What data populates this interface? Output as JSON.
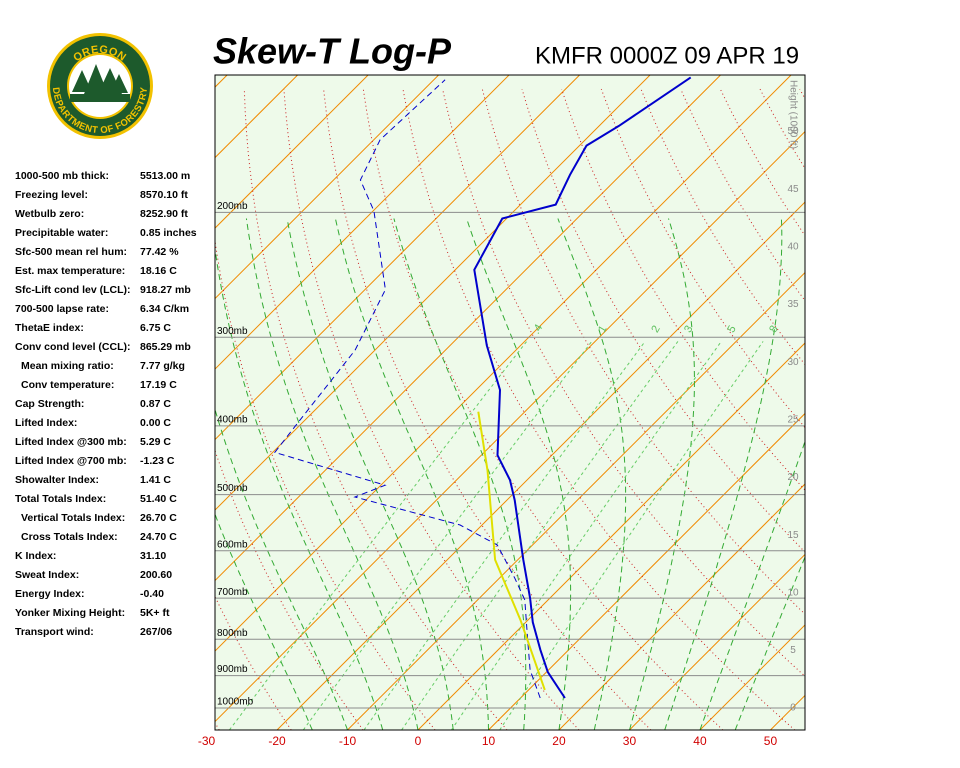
{
  "logo": {
    "top": "OREGON",
    "bottom": "DEPARTMENT OF FORESTRY"
  },
  "stats": [
    {
      "label": "1000-500 mb thick:",
      "value": "5513.00 m"
    },
    {
      "label": "Freezing level:",
      "value": "8570.10 ft"
    },
    {
      "label": "Wetbulb zero:",
      "value": "8252.90 ft"
    },
    {
      "label": "Precipitable water:",
      "value": "0.85 inches"
    },
    {
      "label": "Sfc-500 mean rel hum:",
      "value": "77.42 %"
    },
    {
      "label": "Est. max temperature:",
      "value": "18.16 C"
    },
    {
      "label": "Sfc-Lift cond lev (LCL):",
      "value": "918.27 mb"
    },
    {
      "label": "700-500 lapse rate:",
      "value": "6.34 C/km"
    },
    {
      "label": "ThetaE index:",
      "value": "6.75 C"
    },
    {
      "label": "Conv cond level (CCL):",
      "value": "865.29 mb"
    },
    {
      "label": "Mean mixing ratio:",
      "value": "7.77 g/kg",
      "indent": true
    },
    {
      "label": "Conv temperature:",
      "value": "17.19 C",
      "indent": true
    },
    {
      "label": "Cap Strength:",
      "value": "0.87 C"
    },
    {
      "label": "Lifted Index:",
      "value": "0.00 C"
    },
    {
      "label": "Lifted Index @300 mb:",
      "value": "5.29 C"
    },
    {
      "label": "Lifted Index @700 mb:",
      "value": "-1.23 C"
    },
    {
      "label": "Showalter Index:",
      "value": "1.41 C"
    },
    {
      "label": "Total Totals Index:",
      "value": "51.40 C"
    },
    {
      "label": "Vertical Totals Index:",
      "value": "26.70 C",
      "indent": true
    },
    {
      "label": "Cross Totals Index:",
      "value": "24.70 C",
      "indent": true
    },
    {
      "label": "K Index:",
      "value": "31.10"
    },
    {
      "label": "Sweat Index:",
      "value": "200.60"
    },
    {
      "label": "Energy Index:",
      "value": "-0.40"
    },
    {
      "label": "Yonker Mixing Height:",
      "value": "5K+ ft"
    },
    {
      "label": "Transport wind:",
      "value": "267/06"
    }
  ],
  "chart_data": {
    "type": "skew-t",
    "title": "Skew-T Log-P",
    "subtitle": "KMFR 0000Z 09 APR 19",
    "xlim": [
      -28.8,
      54.9
    ],
    "xticks": [
      -30,
      -20,
      -10,
      0,
      10,
      20,
      30,
      40,
      50
    ],
    "ylim": [
      1074,
      128
    ],
    "ylog": true,
    "yticks": [
      {
        "value": 1000,
        "label": "1000mb"
      },
      {
        "value": 900,
        "label": "900mb"
      },
      {
        "value": 800,
        "label": "800mb"
      },
      {
        "value": 700,
        "label": "700mb"
      },
      {
        "value": 600,
        "label": "600mb"
      },
      {
        "value": 500,
        "label": "500mb"
      },
      {
        "value": 400,
        "label": "400mb"
      },
      {
        "value": 300,
        "label": "300mb"
      },
      {
        "value": 200,
        "label": "200mb"
      }
    ],
    "y2_label": "Height (1000 ft)",
    "y2lim": [
      -1.9,
      54.9
    ],
    "y2ticks": [
      0,
      5,
      10,
      15,
      20,
      25,
      30,
      35,
      40,
      45,
      50
    ],
    "mixing_ratio_lines": [
      {
        "value": 0.4,
        "label": ".4"
      },
      1,
      2,
      3,
      5,
      8
    ],
    "series": [
      {
        "color": "#0000cc",
        "dashed": false,
        "pressure": [
          968,
          890,
          828,
          757,
          700,
          618,
          509,
          477,
          440,
          356,
          308,
          241,
          204,
          195,
          177,
          161,
          151,
          138,
          129
        ],
        "values": [
          16.3,
          10.2,
          6.0,
          1.0,
          -2.8,
          -9.2,
          -18.9,
          -22.4,
          -27.7,
          -36.6,
          -44.8,
          -57.3,
          -60.6,
          -55.0,
          -57.2,
          -59.0,
          -57.2,
          -55.3,
          -53.9
        ]
      },
      {
        "color": "#0000cc",
        "dashed": true,
        "pressure": [
          968,
          884,
          802,
          704,
          656,
          589,
          552,
          504,
          485,
          436,
          393,
          313,
          257,
          199,
          180,
          158,
          130
        ],
        "values": [
          12.8,
          7.4,
          2.8,
          -3.3,
          -7.8,
          -15.0,
          -23.1,
          -42.0,
          -39.4,
          -59.7,
          -60.7,
          -62.8,
          -67.1,
          -79.9,
          -86.2,
          -89.1,
          -88.4
        ]
      },
      {
        "color": "#e0e000",
        "dashed": false,
        "pressure": [
          943,
          751,
          618,
          462,
          382
        ],
        "values": [
          12.3,
          -1.1,
          -13.2,
          -27.0,
          -36.6
        ]
      }
    ]
  }
}
